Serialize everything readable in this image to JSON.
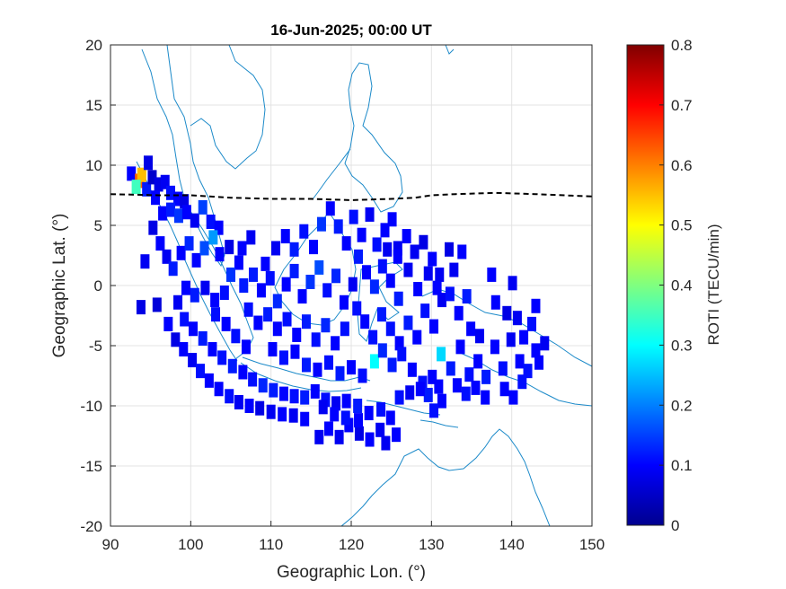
{
  "chart_data": {
    "type": "heatmap",
    "title": "16-Jun-2025; 00:00 UT",
    "xlabel": "Geographic Lon. (°)",
    "ylabel": "Geographic Lat. (°)",
    "xlim": [
      90,
      150
    ],
    "ylim": [
      -20,
      20
    ],
    "xticks": [
      90,
      100,
      110,
      120,
      130,
      140,
      150
    ],
    "yticks": [
      20,
      15,
      10,
      5,
      0,
      -5,
      -10,
      -15,
      -20
    ],
    "grid": true,
    "colorbar": {
      "label": "ROTI (TECU/min)",
      "clim": [
        0,
        0.8
      ],
      "ticks": [
        "0",
        "0.1",
        "0.2",
        "0.3",
        "0.4",
        "0.5",
        "0.6",
        "0.7",
        "0.8"
      ],
      "colormap": "jet"
    },
    "magnetic_equator_lat": [
      [
        90,
        7.6
      ],
      [
        96,
        7.5
      ],
      [
        100,
        7.5
      ],
      [
        105,
        7.3
      ],
      [
        110,
        7.2
      ],
      [
        115,
        7.2
      ],
      [
        120,
        7.1
      ],
      [
        125,
        7.2
      ],
      [
        128,
        7.3
      ],
      [
        130,
        7.5
      ],
      [
        133,
        7.6
      ],
      [
        138,
        7.7
      ],
      [
        143,
        7.6
      ],
      [
        150,
        7.4
      ]
    ],
    "roti_cells": [
      [
        92.6,
        9.3,
        0.1
      ],
      [
        93.6,
        8.7,
        0.62
      ],
      [
        93.9,
        9.2,
        0.55
      ],
      [
        93.2,
        8.2,
        0.35
      ],
      [
        94.5,
        8.0,
        0.12
      ],
      [
        94.7,
        10.2,
        0.08
      ],
      [
        95.2,
        9.0,
        0.06
      ],
      [
        96.0,
        8.4,
        0.08
      ],
      [
        95.6,
        7.3,
        0.1
      ],
      [
        96.8,
        8.6,
        0.09
      ],
      [
        97.5,
        7.7,
        0.11
      ],
      [
        98.4,
        7.2,
        0.1
      ],
      [
        99.2,
        7.0,
        0.08
      ],
      [
        96.5,
        6.0,
        0.1
      ],
      [
        97.5,
        6.3,
        0.12
      ],
      [
        98.5,
        5.8,
        0.14
      ],
      [
        99.5,
        6.1,
        0.1
      ],
      [
        100.5,
        5.4,
        0.09
      ],
      [
        101.5,
        6.5,
        0.15
      ],
      [
        102.5,
        5.3,
        0.11
      ],
      [
        103.5,
        4.8,
        0.1
      ],
      [
        95.3,
        4.8,
        0.08
      ],
      [
        96.2,
        3.5,
        0.1
      ],
      [
        97.0,
        2.4,
        0.09
      ],
      [
        97.8,
        1.4,
        0.12
      ],
      [
        98.8,
        2.7,
        0.1
      ],
      [
        99.8,
        3.5,
        0.13
      ],
      [
        100.7,
        2.1,
        0.1
      ],
      [
        101.7,
        3.1,
        0.16
      ],
      [
        102.8,
        4.0,
        0.22
      ],
      [
        103.6,
        2.6,
        0.1
      ],
      [
        104.8,
        3.2,
        0.08
      ],
      [
        106.0,
        1.9,
        0.1
      ],
      [
        105.0,
        0.9,
        0.14
      ],
      [
        106.6,
        0.0,
        0.12
      ],
      [
        104.2,
        -0.6,
        0.11
      ],
      [
        103.0,
        -1.2,
        0.1
      ],
      [
        101.8,
        -0.2,
        0.09
      ],
      [
        100.5,
        -0.8,
        0.12
      ],
      [
        99.4,
        -0.2,
        0.1
      ],
      [
        98.4,
        -1.4,
        0.09
      ],
      [
        99.2,
        -2.8,
        0.11
      ],
      [
        100.3,
        -3.6,
        0.1
      ],
      [
        101.5,
        -4.4,
        0.12
      ],
      [
        102.7,
        -5.3,
        0.1
      ],
      [
        103.9,
        -6.0,
        0.11
      ],
      [
        105.2,
        -6.7,
        0.12
      ],
      [
        106.5,
        -7.2,
        0.1
      ],
      [
        107.7,
        -7.8,
        0.11
      ],
      [
        109.0,
        -8.3,
        0.13
      ],
      [
        110.3,
        -8.7,
        0.12
      ],
      [
        111.6,
        -9.0,
        0.1
      ],
      [
        112.9,
        -9.2,
        0.11
      ],
      [
        114.2,
        -9.3,
        0.12
      ],
      [
        115.5,
        -8.8,
        0.1
      ],
      [
        116.8,
        -9.5,
        0.11
      ],
      [
        118.1,
        -9.8,
        0.09
      ],
      [
        119.4,
        -9.6,
        0.1
      ],
      [
        120.8,
        -10.0,
        0.12
      ],
      [
        122.2,
        -10.6,
        0.1
      ],
      [
        123.7,
        -10.3,
        0.11
      ],
      [
        97.2,
        -3.2,
        0.1
      ],
      [
        98.1,
        -4.5,
        0.08
      ],
      [
        99.1,
        -5.3,
        0.1
      ],
      [
        100.2,
        -6.2,
        0.09
      ],
      [
        101.2,
        -7.1,
        0.11
      ],
      [
        102.3,
        -7.9,
        0.1
      ],
      [
        103.5,
        -8.6,
        0.1
      ],
      [
        104.8,
        -9.2,
        0.11
      ],
      [
        106.0,
        -9.7,
        0.09
      ],
      [
        107.3,
        -10.0,
        0.1
      ],
      [
        108.6,
        -10.2,
        0.08
      ],
      [
        110.0,
        -10.5,
        0.09
      ],
      [
        111.4,
        -10.7,
        0.1
      ],
      [
        112.8,
        -10.8,
        0.09
      ],
      [
        114.2,
        -11.1,
        0.1
      ],
      [
        95.8,
        -1.6,
        0.07
      ],
      [
        107.8,
        0.9,
        0.12
      ],
      [
        108.8,
        -0.4,
        0.1
      ],
      [
        109.9,
        0.6,
        0.11
      ],
      [
        110.8,
        -1.3,
        0.13
      ],
      [
        111.9,
        0.1,
        0.1
      ],
      [
        112.9,
        1.2,
        0.12
      ],
      [
        113.9,
        -0.9,
        0.1
      ],
      [
        114.9,
        0.3,
        0.14
      ],
      [
        116.0,
        1.5,
        0.16
      ],
      [
        117.0,
        -0.4,
        0.11
      ],
      [
        118.1,
        0.8,
        0.13
      ],
      [
        119.1,
        -1.4,
        0.1
      ],
      [
        120.2,
        0.1,
        0.09
      ],
      [
        107.2,
        -2.0,
        0.11
      ],
      [
        108.4,
        -3.1,
        0.1
      ],
      [
        109.6,
        -2.4,
        0.12
      ],
      [
        110.8,
        -3.6,
        0.1
      ],
      [
        112.0,
        -2.8,
        0.11
      ],
      [
        113.2,
        -4.1,
        0.1
      ],
      [
        114.4,
        -3.0,
        0.12
      ],
      [
        115.6,
        -4.5,
        0.11
      ],
      [
        116.8,
        -3.3,
        0.13
      ],
      [
        118.0,
        -4.8,
        0.1
      ],
      [
        119.2,
        -3.6,
        0.11
      ],
      [
        110.2,
        -5.3,
        0.1
      ],
      [
        111.6,
        -6.0,
        0.11
      ],
      [
        113.0,
        -5.5,
        0.1
      ],
      [
        114.4,
        -6.6,
        0.12
      ],
      [
        115.8,
        -7.0,
        0.1
      ],
      [
        117.2,
        -6.4,
        0.11
      ],
      [
        118.6,
        -7.3,
        0.12
      ],
      [
        120.0,
        -6.8,
        0.1
      ],
      [
        121.4,
        -7.5,
        0.11
      ],
      [
        109.3,
        1.8,
        0.1
      ],
      [
        110.6,
        3.1,
        0.09
      ],
      [
        111.8,
        4.1,
        0.1
      ],
      [
        112.9,
        3.0,
        0.12
      ],
      [
        114.1,
        4.5,
        0.11
      ],
      [
        115.3,
        3.2,
        0.1
      ],
      [
        116.3,
        5.1,
        0.14
      ],
      [
        117.4,
        6.4,
        0.1
      ],
      [
        118.4,
        4.9,
        0.12
      ],
      [
        119.4,
        3.5,
        0.1
      ],
      [
        120.3,
        5.7,
        0.11
      ],
      [
        121.3,
        4.2,
        0.1
      ],
      [
        122.3,
        5.9,
        0.09
      ],
      [
        123.2,
        3.4,
        0.11
      ],
      [
        124.2,
        4.6,
        0.1
      ],
      [
        125.1,
        5.5,
        0.1
      ],
      [
        125.8,
        3.1,
        0.09
      ],
      [
        126.9,
        4.1,
        0.1
      ],
      [
        127.9,
        2.8,
        0.09
      ],
      [
        129.0,
        3.6,
        0.08
      ],
      [
        130.1,
        2.2,
        0.1
      ],
      [
        131.0,
        0.9,
        0.09
      ],
      [
        132.2,
        3.0,
        0.08
      ],
      [
        107.5,
        4.0,
        0.09
      ],
      [
        106.4,
        3.1,
        0.1
      ],
      [
        120.9,
        2.4,
        0.12
      ],
      [
        121.9,
        1.1,
        0.1
      ],
      [
        122.9,
        -0.1,
        0.13
      ],
      [
        123.9,
        1.6,
        0.11
      ],
      [
        124.9,
        0.4,
        0.1
      ],
      [
        125.9,
        -1.1,
        0.12
      ],
      [
        120.7,
        -1.9,
        0.11
      ],
      [
        121.7,
        -3.0,
        0.1
      ],
      [
        122.7,
        -4.3,
        0.11
      ],
      [
        123.8,
        -2.4,
        0.12
      ],
      [
        124.9,
        -3.6,
        0.11
      ],
      [
        126.0,
        -4.8,
        0.1
      ],
      [
        127.1,
        -3.1,
        0.12
      ],
      [
        128.2,
        -4.3,
        0.1
      ],
      [
        129.2,
        -2.1,
        0.11
      ],
      [
        130.3,
        -3.4,
        0.1
      ],
      [
        131.3,
        -1.2,
        0.09
      ],
      [
        132.3,
        -0.7,
        0.11
      ],
      [
        133.4,
        -2.3,
        0.1
      ],
      [
        134.4,
        -0.9,
        0.12
      ],
      [
        122.9,
        -6.3,
        0.3
      ],
      [
        123.9,
        -5.4,
        0.13
      ],
      [
        125.1,
        -6.6,
        0.12
      ],
      [
        126.3,
        -5.7,
        0.11
      ],
      [
        127.6,
        -7.0,
        0.1
      ],
      [
        128.9,
        -8.1,
        0.11
      ],
      [
        130.1,
        -7.6,
        0.1
      ],
      [
        131.2,
        -5.7,
        0.27
      ],
      [
        132.4,
        -6.9,
        0.12
      ],
      [
        133.6,
        -5.1,
        0.1
      ],
      [
        134.7,
        -7.4,
        0.11
      ],
      [
        135.8,
        -6.3,
        0.1
      ],
      [
        136.8,
        -7.6,
        0.12
      ],
      [
        137.9,
        -5.1,
        0.1
      ],
      [
        138.9,
        -6.9,
        0.11
      ],
      [
        139.9,
        -4.5,
        0.09
      ],
      [
        141.0,
        -6.3,
        0.1
      ],
      [
        142.0,
        -7.1,
        0.11
      ],
      [
        143.0,
        -5.4,
        0.1
      ],
      [
        144.1,
        -4.8,
        0.09
      ],
      [
        130.9,
        -8.4,
        0.1
      ],
      [
        129.6,
        -9.1,
        0.12
      ],
      [
        128.6,
        -8.6,
        0.1
      ],
      [
        127.3,
        -8.9,
        0.09
      ],
      [
        126.0,
        -9.3,
        0.11
      ],
      [
        124.9,
        -11.0,
        0.1
      ],
      [
        123.6,
        -12.0,
        0.09
      ],
      [
        122.3,
        -12.8,
        0.1
      ],
      [
        121.0,
        -12.3,
        0.08
      ],
      [
        119.7,
        -11.6,
        0.1
      ],
      [
        118.5,
        -12.6,
        0.09
      ],
      [
        117.2,
        -11.9,
        0.1
      ],
      [
        116.0,
        -12.6,
        0.09
      ],
      [
        131.3,
        -9.6,
        0.1
      ],
      [
        130.3,
        -10.4,
        0.11
      ],
      [
        139.1,
        -8.6,
        0.1
      ],
      [
        140.2,
        -9.3,
        0.1
      ],
      [
        141.3,
        -8.0,
        0.11
      ],
      [
        130.7,
        -0.2,
        0.1
      ],
      [
        132.8,
        1.3,
        0.09
      ],
      [
        133.8,
        2.8,
        0.1
      ],
      [
        137.5,
        0.9,
        0.1
      ],
      [
        140.1,
        0.2,
        0.09
      ],
      [
        138.0,
        -1.4,
        0.1
      ],
      [
        139.4,
        -2.3,
        0.08
      ],
      [
        140.7,
        -2.7,
        0.09
      ],
      [
        141.5,
        -4.3,
        0.1
      ],
      [
        142.5,
        -3.2,
        0.11
      ],
      [
        143.4,
        -6.4,
        0.1
      ],
      [
        143.0,
        -1.7,
        0.1
      ],
      [
        94.3,
        2.0,
        0.09
      ],
      [
        93.8,
        -1.8,
        0.08
      ],
      [
        106.9,
        -5.1,
        0.1
      ],
      [
        105.6,
        -4.2,
        0.11
      ],
      [
        104.4,
        -3.2,
        0.1
      ],
      [
        103.1,
        -2.4,
        0.11
      ],
      [
        116.5,
        -10.1,
        0.09
      ],
      [
        117.9,
        -10.7,
        0.1
      ],
      [
        119.3,
        -11.0,
        0.11
      ],
      [
        120.9,
        -11.2,
        0.1
      ],
      [
        129.6,
        1.0,
        0.09
      ],
      [
        128.3,
        -0.3,
        0.1
      ],
      [
        127.1,
        1.3,
        0.09
      ],
      [
        125.8,
        2.4,
        0.1
      ],
      [
        124.5,
        3.0,
        0.09
      ],
      [
        134.9,
        -3.6,
        0.1
      ],
      [
        136.0,
        -4.2,
        0.09
      ],
      [
        133.2,
        -8.3,
        0.1
      ],
      [
        134.3,
        -9.0,
        0.11
      ],
      [
        135.5,
        -8.5,
        0.1
      ],
      [
        136.7,
        -9.3,
        0.1
      ],
      [
        125.6,
        -12.4,
        0.1
      ],
      [
        124.3,
        -13.1,
        0.09
      ]
    ]
  }
}
